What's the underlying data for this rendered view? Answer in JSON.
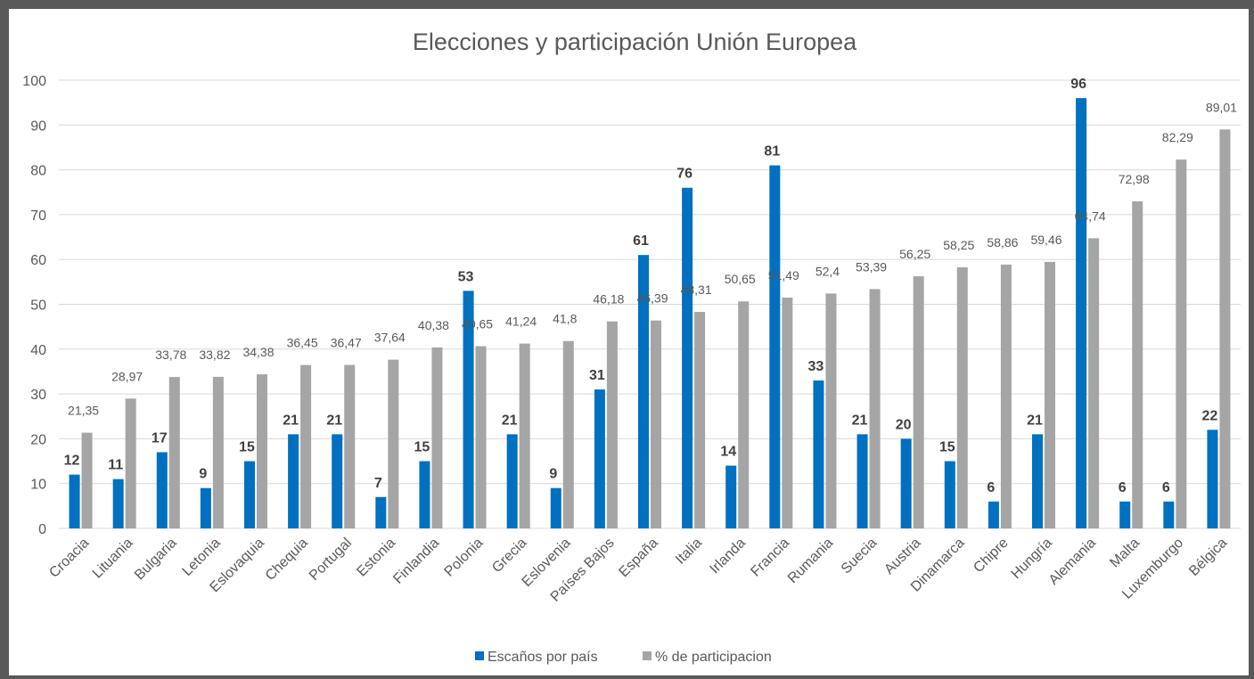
{
  "chart_data": {
    "type": "bar",
    "title": "Elecciones y participación Unión Europea",
    "xlabel": "",
    "ylabel": "",
    "ylim": [
      0,
      100
    ],
    "yticks": [
      0,
      10,
      20,
      30,
      40,
      50,
      60,
      70,
      80,
      90,
      100
    ],
    "grid": true,
    "legend_position": "bottom",
    "categories": [
      "Croacia",
      "Lituania",
      "Bulgaria",
      "Letonia",
      "Eslovaquia",
      "Chequia",
      "Portugal",
      "Estonia",
      "Finlandia",
      "Polonia",
      "Grecia",
      "Eslovenia",
      "Países Bajos",
      "España",
      "Italia",
      "Irlanda",
      "Francia",
      "Rumania",
      "Suecia",
      "Austria",
      "Dinamarca",
      "Chipre",
      "Hungría",
      "Alemania",
      "Malta",
      "Luxemburgo",
      "Bélgica"
    ],
    "series": [
      {
        "name": "Escaños por país",
        "color": "#0070c0",
        "values": [
          12,
          11,
          17,
          9,
          15,
          21,
          21,
          7,
          15,
          53,
          21,
          9,
          31,
          61,
          76,
          14,
          81,
          33,
          21,
          20,
          15,
          6,
          21,
          96,
          6,
          6,
          22
        ],
        "labels": [
          "12",
          "11",
          "17",
          "9",
          "15",
          "21",
          "21",
          "7",
          "15",
          "53",
          "21",
          "9",
          "31",
          "61",
          "76",
          "14",
          "81",
          "33",
          "21",
          "20",
          "15",
          "6",
          "21",
          "96",
          "6",
          "6",
          "22"
        ]
      },
      {
        "name": "% de participacion",
        "color": "#a5a5a5",
        "values": [
          21.35,
          28.97,
          33.78,
          33.82,
          34.38,
          36.45,
          36.47,
          37.64,
          40.38,
          40.65,
          41.24,
          41.8,
          46.18,
          46.39,
          48.31,
          50.65,
          51.49,
          52.4,
          53.39,
          56.25,
          58.25,
          58.86,
          59.46,
          64.74,
          72.98,
          82.29,
          89.01
        ],
        "labels": [
          "21,35",
          "28,97",
          "33,78",
          "33,82",
          "34,38",
          "36,45",
          "36,47",
          "37,64",
          "40,38",
          "40,65",
          "41,24",
          "41,8",
          "46,18",
          "46,39",
          "48,31",
          "50,65",
          "51,49",
          "52,4",
          "53,39",
          "56,25",
          "58,25",
          "58,86",
          "59,46",
          "64,74",
          "72,98",
          "82,29",
          "89,01"
        ]
      }
    ]
  }
}
